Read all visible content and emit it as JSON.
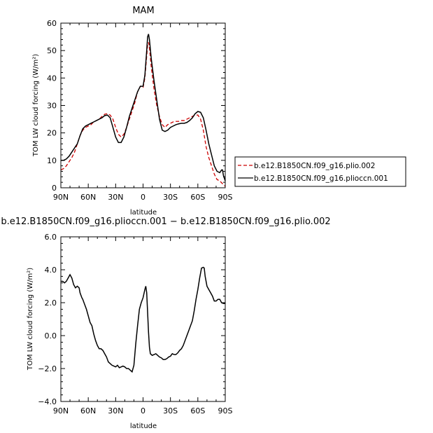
{
  "chart_data": [
    {
      "type": "line",
      "title": "MAM",
      "xlabel": "latitude",
      "ylabel": "TOM LW cloud forcing (W/m²)",
      "xlim": [
        90,
        -90
      ],
      "ylim": [
        0,
        60
      ],
      "x_ticks": [
        90,
        60,
        30,
        0,
        -30,
        -60,
        -90
      ],
      "x_tick_labels": [
        "90N",
        "60N",
        "30N",
        "0",
        "30S",
        "60S",
        "90S"
      ],
      "y_ticks": [
        0,
        10,
        20,
        30,
        40,
        50,
        60
      ],
      "y_tick_labels": [
        "0",
        "10",
        "20",
        "30",
        "40",
        "50",
        "60"
      ],
      "grid": false,
      "legend_position": "right",
      "series": [
        {
          "name": "b.e12.B1850CN.f09_g16.plio.002",
          "color": "#cc0000",
          "dash": "dashed",
          "points": [
            [
              90,
              6.5
            ],
            [
              87,
              7
            ],
            [
              84,
              8
            ],
            [
              81,
              9.5
            ],
            [
              78,
              11
            ],
            [
              75,
              13
            ],
            [
              72,
              16
            ],
            [
              69,
              19
            ],
            [
              66,
              21
            ],
            [
              63,
              22
            ],
            [
              60,
              22.5
            ],
            [
              57,
              23
            ],
            [
              54,
              24
            ],
            [
              51,
              24.5
            ],
            [
              48,
              25
            ],
            [
              45,
              26
            ],
            [
              42,
              26.8
            ],
            [
              39,
              27
            ],
            [
              36,
              26.5
            ],
            [
              33,
              25
            ],
            [
              30,
              22
            ],
            [
              27,
              19.5
            ],
            [
              24,
              18.5
            ],
            [
              21,
              19.5
            ],
            [
              18,
              22
            ],
            [
              15,
              25
            ],
            [
              12,
              28
            ],
            [
              9,
              31
            ],
            [
              6,
              35
            ],
            [
              3,
              37
            ],
            [
              0,
              36.5
            ],
            [
              -2,
              40
            ],
            [
              -4,
              48
            ],
            [
              -5,
              52
            ],
            [
              -6,
              53
            ],
            [
              -7,
              51
            ],
            [
              -9,
              44
            ],
            [
              -12,
              36
            ],
            [
              -15,
              30
            ],
            [
              -18,
              26
            ],
            [
              -21,
              23
            ],
            [
              -24,
              22
            ],
            [
              -27,
              23
            ],
            [
              -30,
              23.5
            ],
            [
              -33,
              24
            ],
            [
              -36,
              24.2
            ],
            [
              -39,
              24.2
            ],
            [
              -42,
              24.5
            ],
            [
              -45,
              24.5
            ],
            [
              -48,
              25
            ],
            [
              -51,
              25.5
            ],
            [
              -54,
              26
            ],
            [
              -57,
              26.5
            ],
            [
              -60,
              26.5
            ],
            [
              -63,
              25
            ],
            [
              -66,
              21
            ],
            [
              -69,
              15
            ],
            [
              -72,
              11
            ],
            [
              -75,
              8
            ],
            [
              -78,
              5
            ],
            [
              -81,
              3
            ],
            [
              -84,
              2.5
            ],
            [
              -87,
              1.5
            ],
            [
              -90,
              0.5
            ]
          ]
        },
        {
          "name": "b.e12.B1850CN.f09_g16.plioccn.001",
          "color": "#000000",
          "dash": "solid",
          "points": [
            [
              90,
              10
            ],
            [
              87,
              10
            ],
            [
              84,
              10.5
            ],
            [
              81,
              11.5
            ],
            [
              78,
              13
            ],
            [
              75,
              14.5
            ],
            [
              72,
              16
            ],
            [
              69,
              19
            ],
            [
              66,
              21.5
            ],
            [
              63,
              22.5
            ],
            [
              60,
              23
            ],
            [
              57,
              23.5
            ],
            [
              54,
              24
            ],
            [
              51,
              24.5
            ],
            [
              48,
              25
            ],
            [
              45,
              25.5
            ],
            [
              42,
              26.3
            ],
            [
              39,
              26.5
            ],
            [
              36,
              25.5
            ],
            [
              33,
              22
            ],
            [
              30,
              18.5
            ],
            [
              27,
              16.5
            ],
            [
              24,
              16.5
            ],
            [
              21,
              18.5
            ],
            [
              18,
              22
            ],
            [
              15,
              26
            ],
            [
              12,
              29
            ],
            [
              9,
              32
            ],
            [
              6,
              35
            ],
            [
              3,
              37
            ],
            [
              0,
              37
            ],
            [
              -2,
              41
            ],
            [
              -4,
              50
            ],
            [
              -5,
              55
            ],
            [
              -6,
              56
            ],
            [
              -7,
              54
            ],
            [
              -9,
              47
            ],
            [
              -12,
              39
            ],
            [
              -15,
              32
            ],
            [
              -18,
              25
            ],
            [
              -21,
              21
            ],
            [
              -24,
              20.5
            ],
            [
              -27,
              21
            ],
            [
              -30,
              22
            ],
            [
              -33,
              22.5
            ],
            [
              -36,
              23
            ],
            [
              -39,
              23.3
            ],
            [
              -42,
              23.5
            ],
            [
              -45,
              23.5
            ],
            [
              -48,
              23.8
            ],
            [
              -51,
              24.5
            ],
            [
              -54,
              25.5
            ],
            [
              -57,
              27
            ],
            [
              -60,
              27.8
            ],
            [
              -63,
              27.5
            ],
            [
              -66,
              25.5
            ],
            [
              -69,
              21
            ],
            [
              -72,
              16
            ],
            [
              -75,
              12
            ],
            [
              -78,
              8
            ],
            [
              -81,
              6
            ],
            [
              -84,
              5.5
            ],
            [
              -86,
              6.5
            ],
            [
              -87,
              6.5
            ],
            [
              -88,
              4.5
            ],
            [
              -90,
              2.5
            ]
          ]
        }
      ]
    },
    {
      "type": "line",
      "title": "b.e12.B1850CN.f09_g16.plioccn.001 − b.e12.B1850CN.f09_g16.plio.002",
      "xlabel": "latitude",
      "ylabel": "TOM LW cloud forcing (W/m²)",
      "xlim": [
        90,
        -90
      ],
      "ylim": [
        -4,
        6
      ],
      "x_ticks": [
        90,
        60,
        30,
        0,
        -30,
        -60,
        -90
      ],
      "x_tick_labels": [
        "90N",
        "60N",
        "30N",
        "0",
        "30S",
        "60S",
        "90S"
      ],
      "y_ticks": [
        -4,
        -2,
        0,
        2,
        4,
        6
      ],
      "y_tick_labels": [
        "−4.0",
        "−2.0",
        "0.0",
        "2.0",
        "4.0",
        "6.0"
      ],
      "grid": false,
      "series": [
        {
          "name": "",
          "color": "#000000",
          "dash": "solid",
          "points": [
            [
              90,
              3.3
            ],
            [
              88,
              3.3
            ],
            [
              86,
              3.2
            ],
            [
              84,
              3.3
            ],
            [
              82,
              3.5
            ],
            [
              80,
              3.7
            ],
            [
              78,
              3.5
            ],
            [
              76,
              3.1
            ],
            [
              74,
              2.9
            ],
            [
              72,
              3.0
            ],
            [
              70,
              2.9
            ],
            [
              69,
              2.6
            ],
            [
              67,
              2.3
            ],
            [
              66,
              2.2
            ],
            [
              64,
              1.9
            ],
            [
              62,
              1.6
            ],
            [
              60,
              1.2
            ],
            [
              58,
              0.8
            ],
            [
              56,
              0.6
            ],
            [
              54,
              0.1
            ],
            [
              52,
              -0.3
            ],
            [
              50,
              -0.6
            ],
            [
              48,
              -0.8
            ],
            [
              46,
              -0.8
            ],
            [
              44,
              -0.9
            ],
            [
              42,
              -1.1
            ],
            [
              40,
              -1.3
            ],
            [
              38,
              -1.6
            ],
            [
              36,
              -1.7
            ],
            [
              34,
              -1.8
            ],
            [
              32,
              -1.85
            ],
            [
              30,
              -1.9
            ],
            [
              28,
              -1.8
            ],
            [
              26,
              -1.95
            ],
            [
              24,
              -1.9
            ],
            [
              22,
              -1.85
            ],
            [
              20,
              -1.9
            ],
            [
              18,
              -2.0
            ],
            [
              16,
              -2.0
            ],
            [
              14,
              -2.1
            ],
            [
              12,
              -2.2
            ],
            [
              10,
              -1.8
            ],
            [
              8,
              -0.5
            ],
            [
              6,
              0.6
            ],
            [
              4,
              1.6
            ],
            [
              2,
              2.0
            ],
            [
              0,
              2.3
            ],
            [
              -2,
              2.8
            ],
            [
              -3,
              3.0
            ],
            [
              -4,
              2.6
            ],
            [
              -5,
              1.4
            ],
            [
              -6,
              0.2
            ],
            [
              -7,
              -0.7
            ],
            [
              -8,
              -1.1
            ],
            [
              -10,
              -1.2
            ],
            [
              -12,
              -1.15
            ],
            [
              -14,
              -1.1
            ],
            [
              -16,
              -1.2
            ],
            [
              -18,
              -1.3
            ],
            [
              -20,
              -1.35
            ],
            [
              -22,
              -1.45
            ],
            [
              -24,
              -1.45
            ],
            [
              -26,
              -1.4
            ],
            [
              -28,
              -1.3
            ],
            [
              -30,
              -1.25
            ],
            [
              -32,
              -1.1
            ],
            [
              -34,
              -1.15
            ],
            [
              -36,
              -1.15
            ],
            [
              -38,
              -1.05
            ],
            [
              -40,
              -0.9
            ],
            [
              -42,
              -0.8
            ],
            [
              -44,
              -0.6
            ],
            [
              -46,
              -0.3
            ],
            [
              -48,
              0.0
            ],
            [
              -50,
              0.3
            ],
            [
              -52,
              0.6
            ],
            [
              -54,
              0.9
            ],
            [
              -56,
              1.5
            ],
            [
              -58,
              2.2
            ],
            [
              -60,
              2.8
            ],
            [
              -62,
              3.5
            ],
            [
              -64,
              4.1
            ],
            [
              -66,
              4.15
            ],
            [
              -67,
              4.1
            ],
            [
              -68,
              3.6
            ],
            [
              -70,
              3.0
            ],
            [
              -72,
              2.8
            ],
            [
              -74,
              2.6
            ],
            [
              -76,
              2.4
            ],
            [
              -78,
              2.1
            ],
            [
              -80,
              2.1
            ],
            [
              -82,
              2.2
            ],
            [
              -84,
              2.2
            ],
            [
              -86,
              2.0
            ],
            [
              -88,
              1.95
            ],
            [
              -90,
              1.95
            ]
          ]
        }
      ]
    }
  ]
}
